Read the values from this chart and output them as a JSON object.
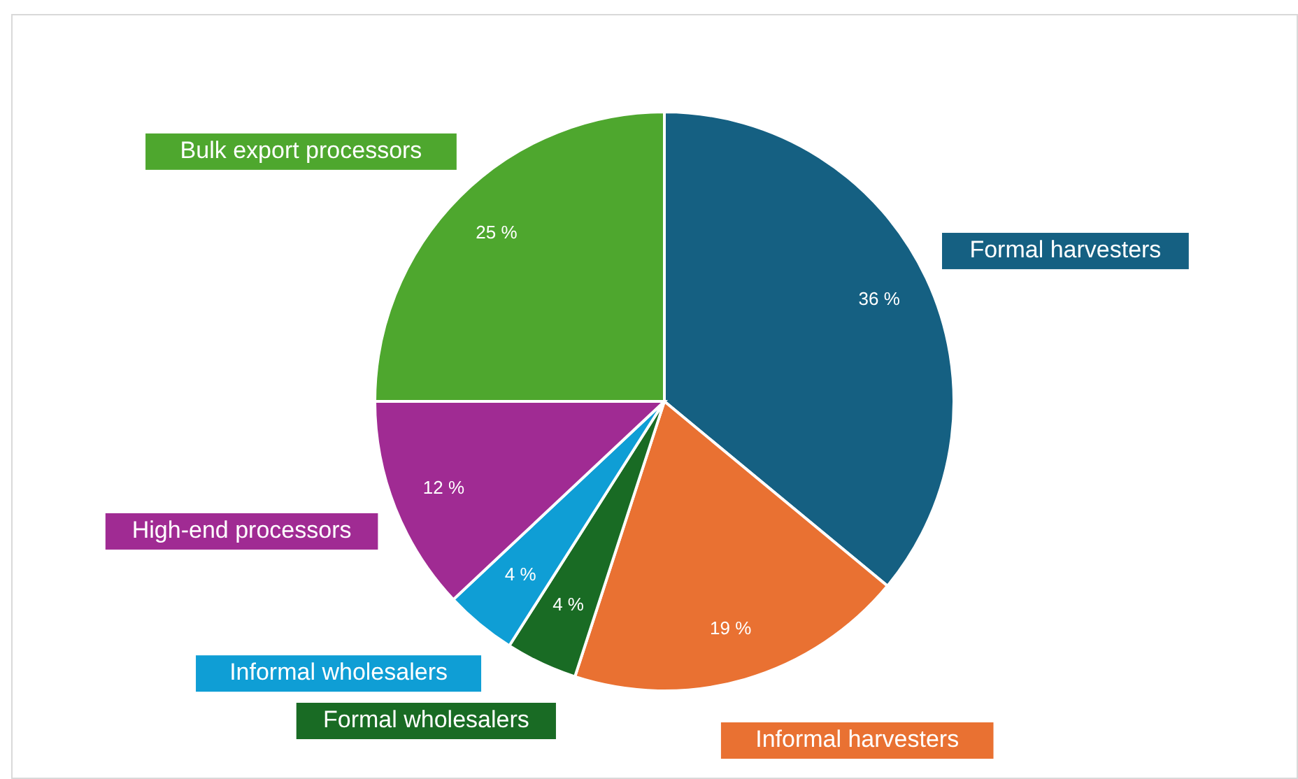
{
  "chart_data": {
    "type": "pie",
    "categories": [
      "Formal harvesters",
      "Informal harvesters",
      "Formal wholesalers",
      "Informal wholesalers",
      "High-end processors",
      "Bulk export processors"
    ],
    "values": [
      36,
      19,
      4,
      4,
      12,
      25
    ],
    "colors": [
      "#156082",
      "#e97132",
      "#196b24",
      "#0f9ed5",
      "#a02b93",
      "#4ea72e"
    ],
    "value_labels": [
      "36 %",
      "19 %",
      "4 %",
      "4 %",
      "12 %",
      "25 %"
    ]
  }
}
